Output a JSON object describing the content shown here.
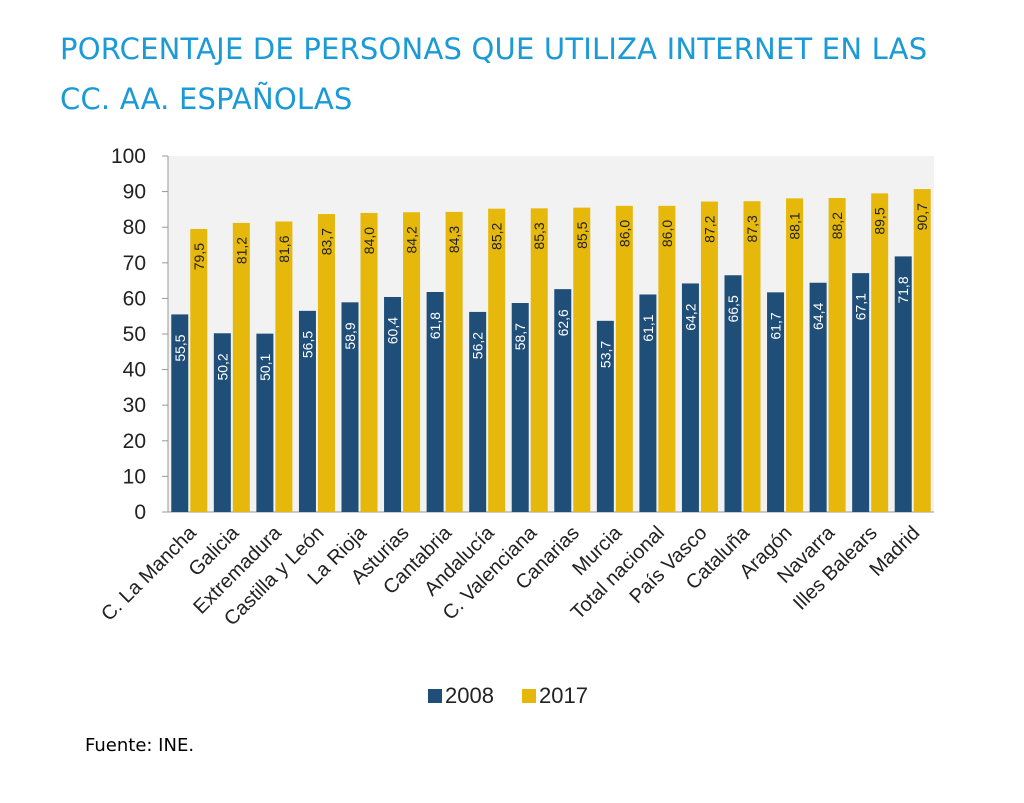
{
  "title": "PORCENTAJE DE PERSONAS QUE UTILIZA INTERNET EN LAS CC. AA. ESPAÑOLAS",
  "source": "Fuente: INE.",
  "colors": {
    "s2008": "#1f4e79",
    "s2017": "#e5b80b",
    "title": "#1a9ad6",
    "plot_bg": "#f2f2f2"
  },
  "chart_data": {
    "type": "bar",
    "title": "PORCENTAJE DE PERSONAS QUE UTILIZA INTERNET EN LAS CC. AA. ESPAÑOLAS",
    "xlabel": "",
    "ylabel": "",
    "ylim": [
      0,
      100
    ],
    "yticks": [
      0,
      10,
      20,
      30,
      40,
      50,
      60,
      70,
      80,
      90,
      100
    ],
    "legend_position": "bottom",
    "categories": [
      "C. La Mancha",
      "Galicia",
      "Extremadura",
      "Castilla y León",
      "La Rioja",
      "Asturias",
      "Cantabria",
      "Andalucía",
      "C. Valenciana",
      "Canarias",
      "Murcia",
      "Total nacional",
      "País Vasco",
      "Cataluña",
      "Aragón",
      "Navarra",
      "Illes Balears",
      "Madrid"
    ],
    "series": [
      {
        "name": "2008",
        "values": [
          55.5,
          50.2,
          50.1,
          56.5,
          58.9,
          60.4,
          61.8,
          56.2,
          58.7,
          62.6,
          53.7,
          61.1,
          64.2,
          66.5,
          61.7,
          64.4,
          67.1,
          71.8
        ],
        "labels": [
          "55,5",
          "50,2",
          "50,1",
          "56,5",
          "58,9",
          "60,4",
          "61,8",
          "56,2",
          "58,7",
          "62,6",
          "53,7",
          "61,1",
          "64,2",
          "66,5",
          "61,7",
          "64,4",
          "67,1",
          "71,8"
        ]
      },
      {
        "name": "2017",
        "values": [
          79.5,
          81.2,
          81.6,
          83.7,
          84.0,
          84.2,
          84.3,
          85.2,
          85.3,
          85.5,
          86.0,
          86.0,
          87.2,
          87.3,
          88.1,
          88.2,
          89.5,
          90.7
        ],
        "labels": [
          "79,5",
          "81,2",
          "81,6",
          "83,7",
          "84,0",
          "84,2",
          "84,3",
          "85,2",
          "85,3",
          "85,5",
          "86,0",
          "86,0",
          "87,2",
          "87,3",
          "88,1",
          "88,2",
          "89,5",
          "90,7"
        ]
      }
    ]
  }
}
